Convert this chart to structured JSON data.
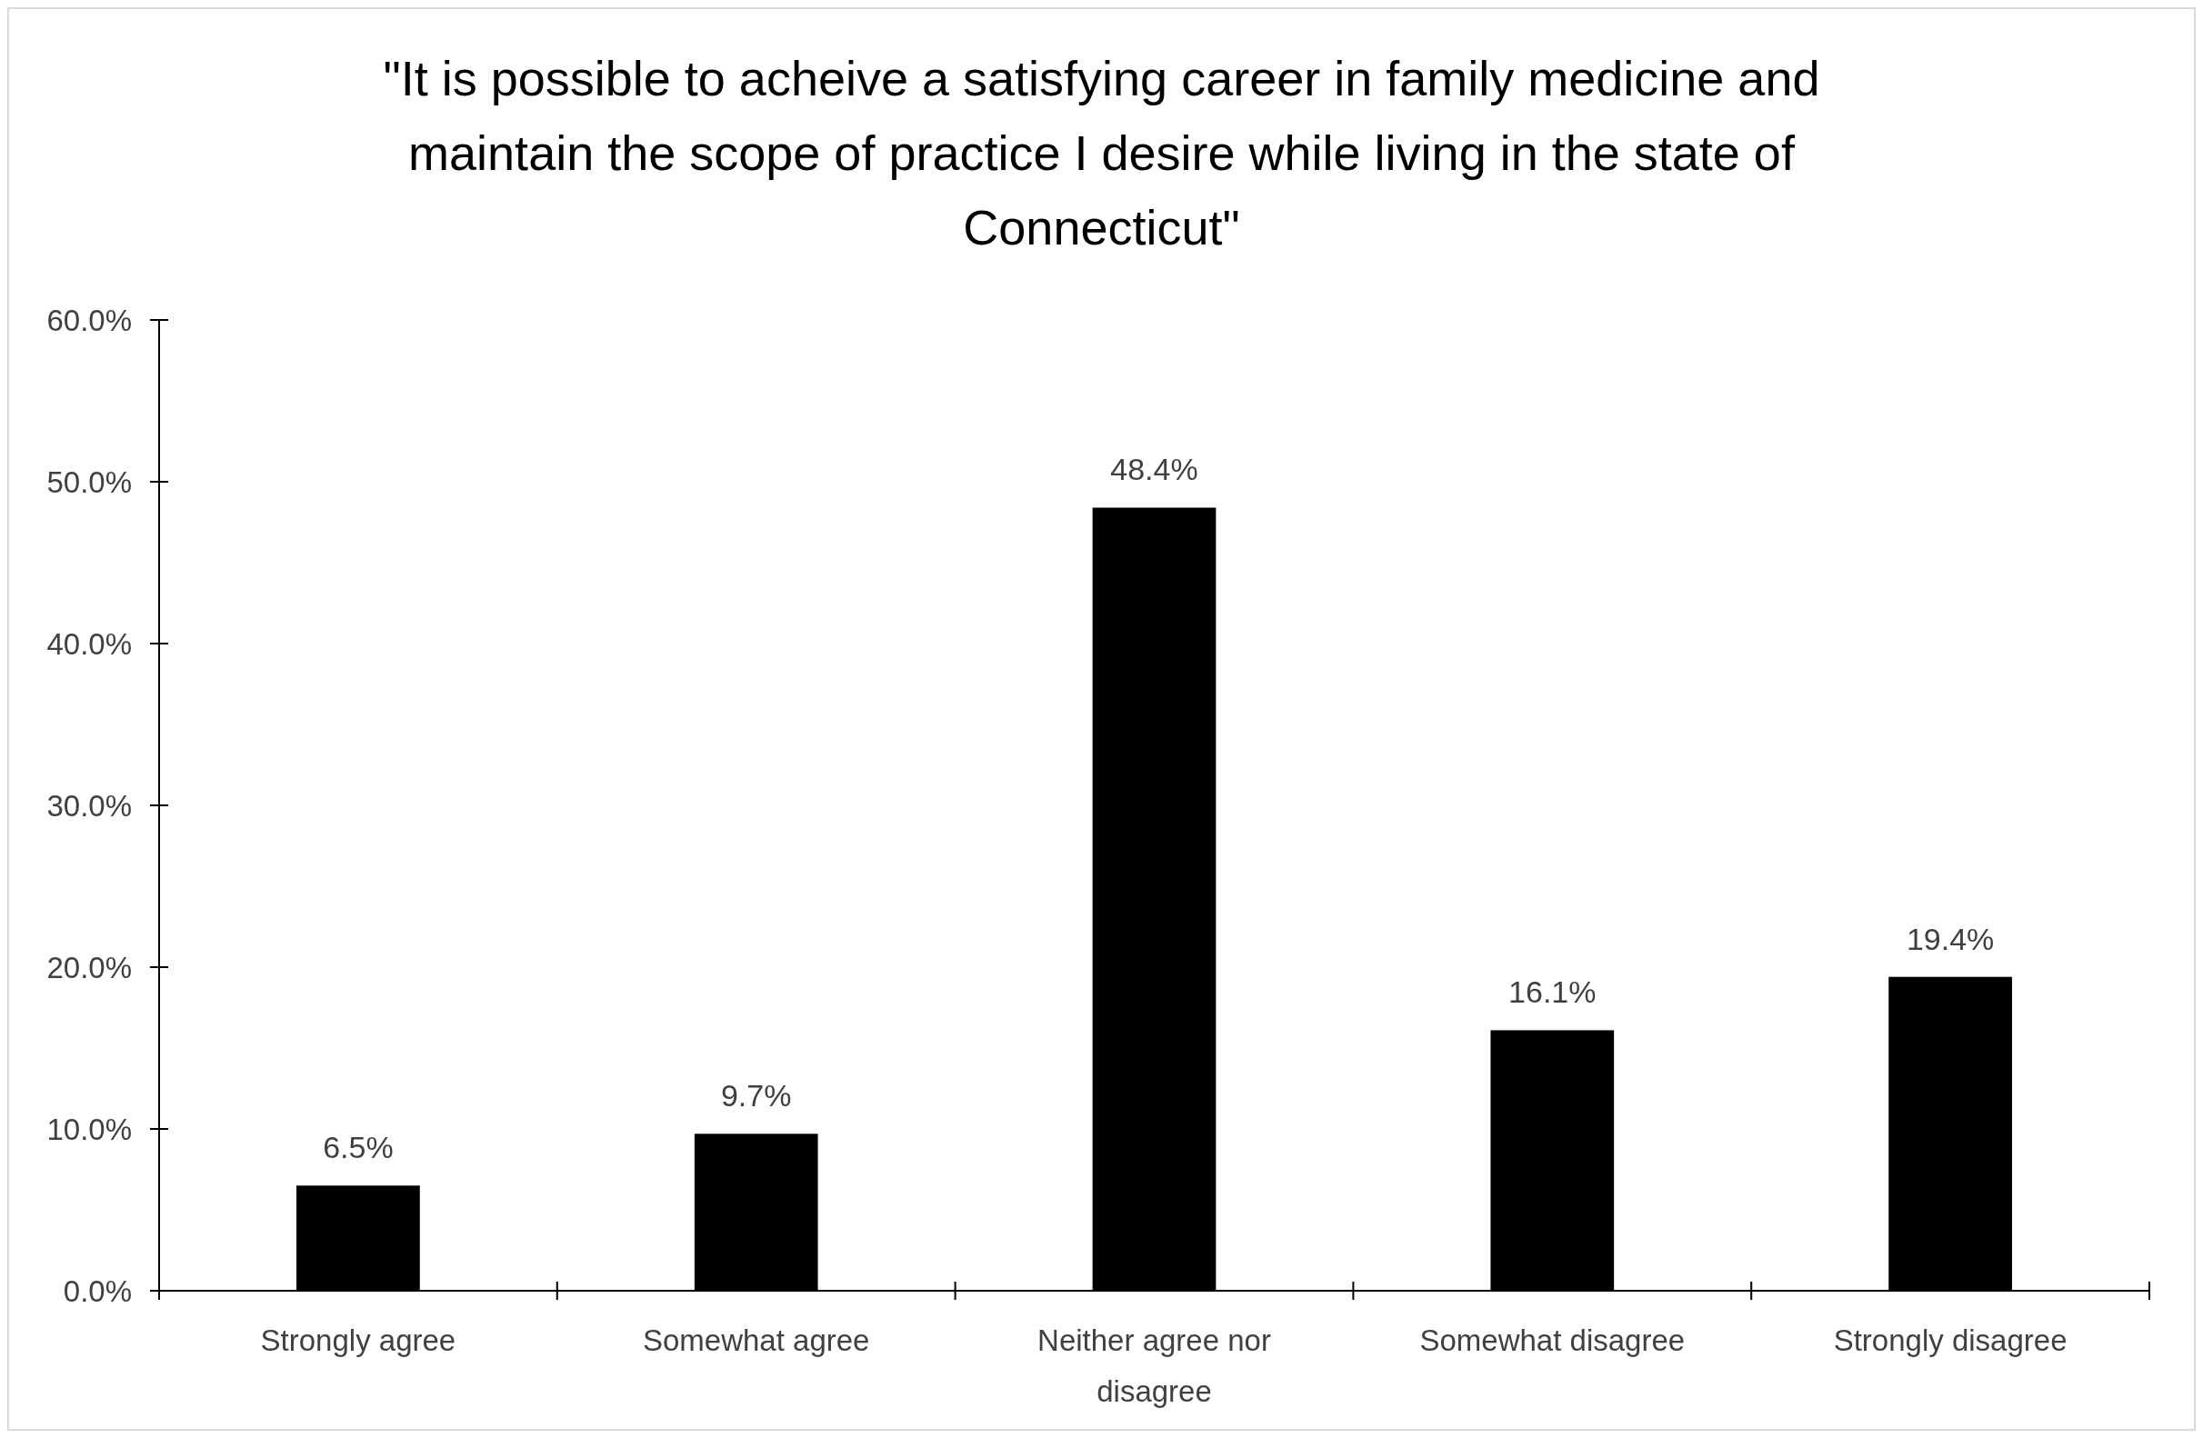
{
  "chart_data": {
    "type": "bar",
    "title": "\"It is possible to acheive a satisfying career in family medicine and maintain the scope of practice I desire while living in the state of Connecticut\"",
    "categories": [
      "Strongly agree",
      "Somewhat agree",
      "Neither agree nor disagree",
      "Somewhat disagree",
      "Strongly disagree"
    ],
    "values": [
      6.5,
      9.7,
      48.4,
      16.1,
      19.4
    ],
    "value_labels": [
      "6.5%",
      "9.7%",
      "48.4%",
      "16.1%",
      "19.4%"
    ],
    "color": "#000000",
    "ylim": [
      0,
      60
    ],
    "yticks": [
      {
        "value": 0,
        "label": "0.0%"
      },
      {
        "value": 10,
        "label": "10.0%"
      },
      {
        "value": 20,
        "label": "20.0%"
      },
      {
        "value": 30,
        "label": "30.0%"
      },
      {
        "value": 40,
        "label": "40.0%"
      },
      {
        "value": 50,
        "label": "50.0%"
      },
      {
        "value": 60,
        "label": "60.0%"
      }
    ],
    "grid": false
  }
}
